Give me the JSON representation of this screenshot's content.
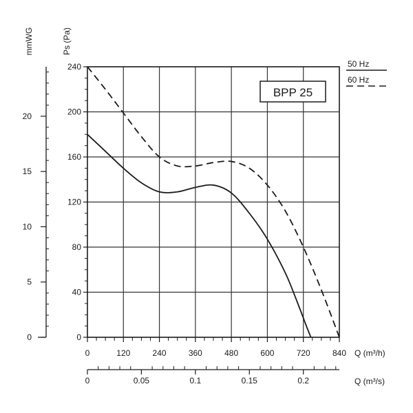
{
  "chart_data": {
    "type": "line",
    "title": "BPP 25",
    "xlabel": "Q (m³/h)",
    "xlabel_secondary": "Q (m³/s)",
    "ylabel": "Ps (Pa)",
    "ylabel_secondary": "mmWG",
    "xlim": [
      0,
      840
    ],
    "ylim": [
      0,
      240
    ],
    "x_ticks": [
      0,
      120,
      240,
      360,
      480,
      600,
      720,
      840
    ],
    "y_ticks": [
      0,
      40,
      80,
      120,
      160,
      200,
      240
    ],
    "x2_ticks": [
      {
        "value": 0,
        "label": "0"
      },
      {
        "value": 0.05,
        "label": "0.05"
      },
      {
        "value": 0.1,
        "label": "0.1"
      },
      {
        "value": 0.15,
        "label": "0.15"
      },
      {
        "value": 0.2,
        "label": "0.2"
      }
    ],
    "y2_ticks": [
      {
        "value": 0,
        "label": "0"
      },
      {
        "value": 5,
        "label": "5"
      },
      {
        "value": 10,
        "label": "10"
      },
      {
        "value": 15,
        "label": "15"
      },
      {
        "value": 20,
        "label": "20"
      }
    ],
    "grid": true,
    "legend_position": "top-right",
    "series": [
      {
        "name": "50 Hz",
        "style": "solid",
        "x": [
          0,
          60,
          120,
          180,
          240,
          300,
          360,
          420,
          480,
          540,
          600,
          660,
          700,
          730,
          745
        ],
        "y": [
          180,
          165,
          150,
          137,
          129,
          129,
          133,
          135,
          128,
          110,
          87,
          57,
          31,
          10,
          0
        ]
      },
      {
        "name": "60 Hz",
        "style": "dashed",
        "x": [
          0,
          60,
          120,
          180,
          240,
          300,
          360,
          420,
          480,
          540,
          600,
          660,
          720,
          780,
          840
        ],
        "y": [
          240,
          220,
          199,
          178,
          160,
          152,
          152,
          155,
          156,
          150,
          135,
          112,
          80,
          42,
          0
        ]
      }
    ]
  }
}
